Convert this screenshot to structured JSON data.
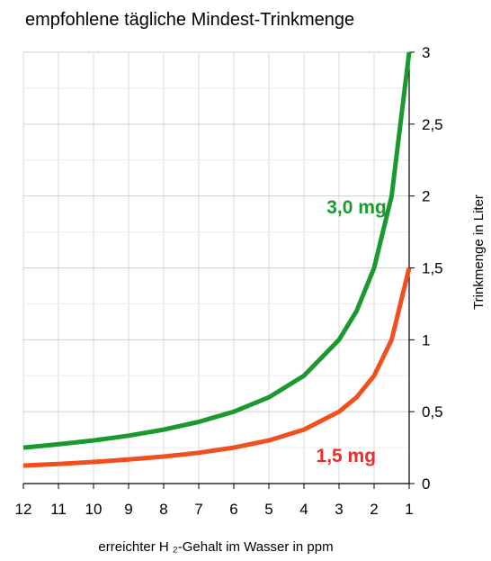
{
  "chart_data": {
    "type": "line",
    "title": "empfohlene tägliche Mindest-Trinkmenge",
    "xlabel": "erreichter H ₂-Gehalt im Wasser in ppm",
    "ylabel": "Trinkmenge in Liter",
    "x_reversed": true,
    "xlim": [
      12,
      1
    ],
    "ylim": [
      0,
      3
    ],
    "x_ticks": [
      12,
      11,
      10,
      9,
      8,
      7,
      6,
      5,
      4,
      3,
      2,
      1
    ],
    "y_ticks": [
      {
        "value": 0,
        "label": "0"
      },
      {
        "value": 0.5,
        "label": "0,5"
      },
      {
        "value": 1,
        "label": "1"
      },
      {
        "value": 1.5,
        "label": "1,5"
      },
      {
        "value": 2,
        "label": "2"
      },
      {
        "value": 2.5,
        "label": "2,5"
      },
      {
        "value": 3,
        "label": "3"
      }
    ],
    "grid": true,
    "y_axis_side": "right",
    "series": [
      {
        "name": "3,0 mg",
        "color": "#1a9a2e",
        "points": [
          [
            12,
            0.25
          ],
          [
            11,
            0.273
          ],
          [
            10,
            0.3
          ],
          [
            9,
            0.333
          ],
          [
            8,
            0.375
          ],
          [
            7,
            0.429
          ],
          [
            6,
            0.5
          ],
          [
            5,
            0.6
          ],
          [
            4,
            0.75
          ],
          [
            3,
            1.0
          ],
          [
            2.5,
            1.2
          ],
          [
            2,
            1.5
          ],
          [
            1.5,
            2.0
          ],
          [
            1,
            3.0
          ]
        ]
      },
      {
        "name": "1,5 mg",
        "color": "#f24e1e",
        "points": [
          [
            12,
            0.125
          ],
          [
            11,
            0.136
          ],
          [
            10,
            0.15
          ],
          [
            9,
            0.167
          ],
          [
            8,
            0.188
          ],
          [
            7,
            0.214
          ],
          [
            6,
            0.25
          ],
          [
            5,
            0.3
          ],
          [
            4,
            0.375
          ],
          [
            3,
            0.5
          ],
          [
            2.5,
            0.6
          ],
          [
            2,
            0.75
          ],
          [
            1.5,
            1.0
          ],
          [
            1,
            1.5
          ]
        ]
      }
    ],
    "annotations": [
      {
        "text": "3,0 mg",
        "color": "#1a9a2e",
        "x": 2.5,
        "y": 1.88
      },
      {
        "text": "1,5 mg",
        "color": "#ee2a2a",
        "x": 2.8,
        "y": 0.15
      }
    ]
  }
}
